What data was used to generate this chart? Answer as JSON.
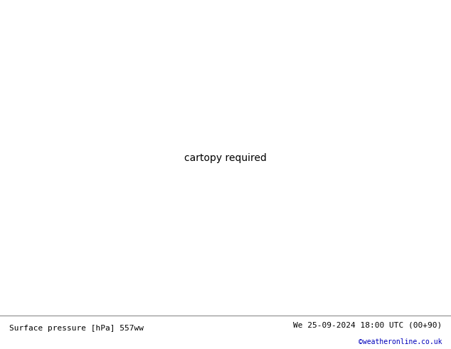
{
  "title_left": "Surface pressure [hPa] 557ww",
  "title_right": "We 25-09-2024 18:00 UTC (00+90)",
  "title_right2": "©weatheronline.co.uk",
  "ocean_color": "#d0d8e8",
  "land_color": "#c8e8a0",
  "border_color": "#a0a0a0",
  "water_body_color": "#d0d8e8",
  "red_color": "#cc0000",
  "blue_color": "#0000bb",
  "black_color": "#000000",
  "footer_bg": "#ffffff",
  "label_fontsize": 7.5,
  "footer_fontsize": 8,
  "map_extent": [
    -75,
    50,
    30,
    75
  ]
}
